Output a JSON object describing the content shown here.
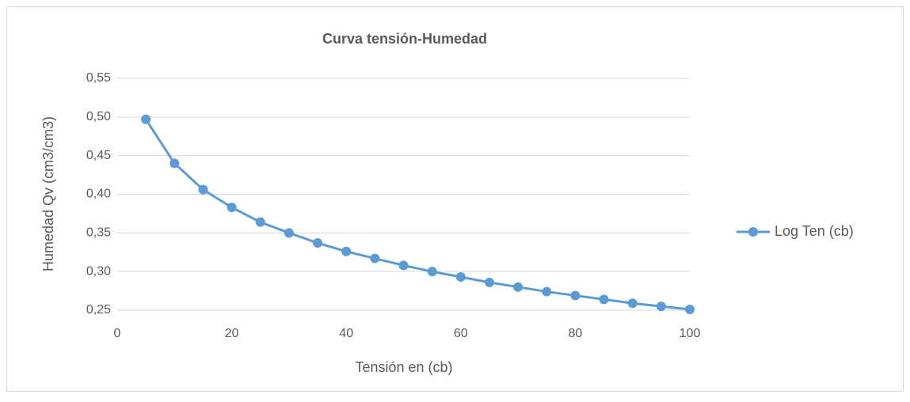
{
  "chart_data": {
    "type": "line",
    "title": "Curva tensión-Humedad",
    "x_label": "Tensión en (cb)",
    "y_label": "Humedad  Qv (cm3/cm3)",
    "x": [
      5,
      10,
      15,
      20,
      25,
      30,
      35,
      40,
      45,
      50,
      55,
      60,
      65,
      70,
      75,
      80,
      85,
      90,
      95,
      100
    ],
    "series": [
      {
        "name": "Log Ten (cb)",
        "color": "#5b9bd5",
        "values": [
          0.497,
          0.44,
          0.406,
          0.383,
          0.364,
          0.35,
          0.337,
          0.326,
          0.317,
          0.308,
          0.3,
          0.293,
          0.286,
          0.28,
          0.274,
          0.269,
          0.264,
          0.259,
          0.255,
          0.251
        ]
      }
    ],
    "xlim": [
      0,
      100
    ],
    "xticks": [
      0,
      20,
      40,
      60,
      80,
      100
    ],
    "ylim": [
      0.25,
      0.55
    ],
    "yticks": [
      {
        "value": 0.25,
        "label": "0,25"
      },
      {
        "value": 0.3,
        "label": "0,30"
      },
      {
        "value": 0.35,
        "label": "0,35"
      },
      {
        "value": 0.4,
        "label": "0,40"
      },
      {
        "value": 0.45,
        "label": "0,45"
      },
      {
        "value": 0.5,
        "label": "0,50"
      },
      {
        "value": 0.55,
        "label": "0,55"
      }
    ],
    "grid": true,
    "legend": "right"
  }
}
